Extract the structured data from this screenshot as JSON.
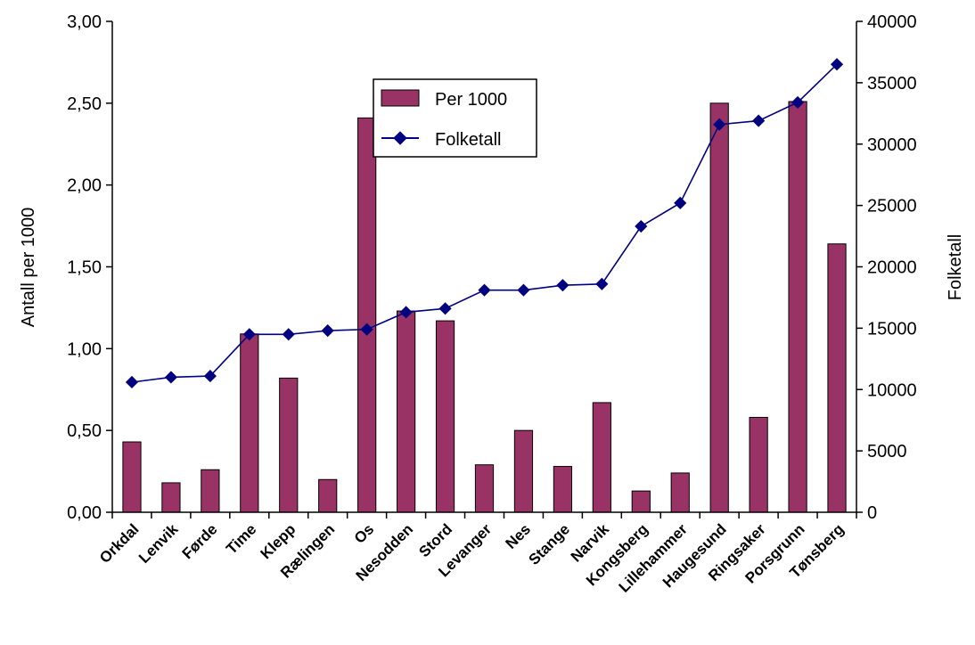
{
  "chart_data": {
    "type": "bar",
    "categories": [
      "Orkdal",
      "Lenvik",
      "Førde",
      "Time",
      "Klepp",
      "Rælingen",
      "Os",
      "Nesodden",
      "Stord",
      "Levanger",
      "Nes",
      "Stange",
      "Narvik",
      "Kongsberg",
      "Lillehammer",
      "Haugesund",
      "Ringsaker",
      "Porsgrunn",
      "Tønsberg"
    ],
    "series": [
      {
        "name": "Per 1000",
        "kind": "bar",
        "axis": "left",
        "color": "#993366",
        "values": [
          0.43,
          0.18,
          0.26,
          1.09,
          0.82,
          0.2,
          2.41,
          1.23,
          1.17,
          0.29,
          0.5,
          0.28,
          0.67,
          0.13,
          0.24,
          2.5,
          0.58,
          2.51,
          1.64
        ]
      },
      {
        "name": "Folketall",
        "kind": "line",
        "axis": "right",
        "color": "#000080",
        "values": [
          10600,
          11000,
          11100,
          14500,
          14500,
          14800,
          14900,
          16300,
          16600,
          18100,
          18100,
          18500,
          18600,
          23300,
          25200,
          31600,
          31900,
          33400,
          36500
        ]
      }
    ],
    "ylabel_left": "Antall per 1000",
    "ylabel_right": "Folketall",
    "ylim_left": [
      0,
      3
    ],
    "ylim_right": [
      0,
      40000
    ],
    "yticks_left": [
      "0,00",
      "0,50",
      "1,00",
      "1,50",
      "2,00",
      "2,50",
      "3,00"
    ],
    "yticks_right": [
      "0",
      "5000",
      "10000",
      "15000",
      "20000",
      "25000",
      "30000",
      "35000",
      "40000"
    ],
    "legend_position": "top-center",
    "grid": false
  }
}
